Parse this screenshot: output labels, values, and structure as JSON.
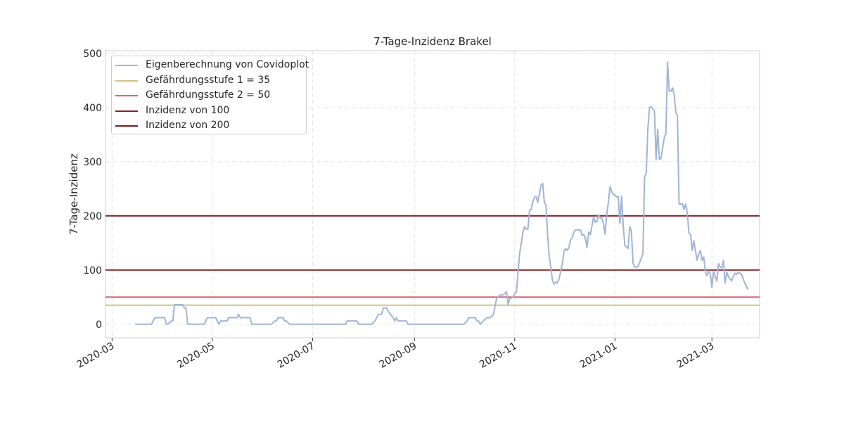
{
  "chart_data": {
    "type": "line",
    "title": "7-Tage-Inzidenz Brakel",
    "xlabel": "",
    "ylabel": "7-Tage-Inzidenz",
    "ylim": [
      -25,
      505
    ],
    "xlim": [
      "2020-02-26",
      "2021-03-30"
    ],
    "y_ticks": [
      0,
      100,
      200,
      300,
      400,
      500
    ],
    "x_ticks": [
      "2020-03",
      "2020-05",
      "2020-07",
      "2020-09",
      "2020-11",
      "2021-01",
      "2021-03"
    ],
    "grid": true,
    "legend_position": "upper-left",
    "series": [
      {
        "name": "Eigenberechnung von Covidoplot",
        "color": "#a0b4d6",
        "points": [
          [
            "2020-03-15",
            0
          ],
          [
            "2020-03-25",
            0
          ],
          [
            "2020-03-27",
            12
          ],
          [
            "2020-04-02",
            12
          ],
          [
            "2020-04-03",
            0
          ],
          [
            "2020-04-04",
            0
          ],
          [
            "2020-04-06",
            6
          ],
          [
            "2020-04-07",
            6
          ],
          [
            "2020-04-08",
            36
          ],
          [
            "2020-04-13",
            36
          ],
          [
            "2020-04-14",
            30
          ],
          [
            "2020-04-15",
            30
          ],
          [
            "2020-04-16",
            0
          ],
          [
            "2020-04-26",
            0
          ],
          [
            "2020-04-28",
            12
          ],
          [
            "2020-05-03",
            12
          ],
          [
            "2020-05-05",
            0
          ],
          [
            "2020-05-06",
            6
          ],
          [
            "2020-05-10",
            6
          ],
          [
            "2020-05-11",
            12
          ],
          [
            "2020-05-16",
            12
          ],
          [
            "2020-05-17",
            18
          ],
          [
            "2020-05-18",
            12
          ],
          [
            "2020-05-24",
            12
          ],
          [
            "2020-05-25",
            0
          ],
          [
            "2020-06-06",
            0
          ],
          [
            "2020-06-08",
            6
          ],
          [
            "2020-06-09",
            6
          ],
          [
            "2020-06-10",
            12
          ],
          [
            "2020-06-13",
            12
          ],
          [
            "2020-06-14",
            6
          ],
          [
            "2020-06-15",
            6
          ],
          [
            "2020-06-17",
            0
          ],
          [
            "2020-07-21",
            0
          ],
          [
            "2020-07-22",
            6
          ],
          [
            "2020-07-28",
            6
          ],
          [
            "2020-07-29",
            0
          ],
          [
            "2020-08-06",
            0
          ],
          [
            "2020-08-08",
            6
          ],
          [
            "2020-08-10",
            18
          ],
          [
            "2020-08-12",
            18
          ],
          [
            "2020-08-13",
            30
          ],
          [
            "2020-08-15",
            30
          ],
          [
            "2020-08-16",
            24
          ],
          [
            "2020-08-19",
            12
          ],
          [
            "2020-08-20",
            6
          ],
          [
            "2020-08-21",
            12
          ],
          [
            "2020-08-22",
            6
          ],
          [
            "2020-08-27",
            6
          ],
          [
            "2020-08-28",
            0
          ],
          [
            "2020-10-01",
            0
          ],
          [
            "2020-10-03",
            6
          ],
          [
            "2020-10-04",
            12
          ],
          [
            "2020-10-08",
            12
          ],
          [
            "2020-10-09",
            6
          ],
          [
            "2020-10-10",
            6
          ],
          [
            "2020-10-11",
            0
          ],
          [
            "2020-10-13",
            6
          ],
          [
            "2020-10-15",
            12
          ],
          [
            "2020-10-17",
            12
          ],
          [
            "2020-10-19",
            18
          ],
          [
            "2020-10-21",
            48
          ],
          [
            "2020-10-23",
            54
          ],
          [
            "2020-10-25",
            54
          ],
          [
            "2020-10-27",
            60
          ],
          [
            "2020-10-28",
            36
          ],
          [
            "2020-10-29",
            48
          ],
          [
            "2020-10-30",
            48
          ],
          [
            "2020-11-01",
            55
          ],
          [
            "2020-11-02",
            60
          ],
          [
            "2020-11-04",
            130
          ],
          [
            "2020-11-05",
            150
          ],
          [
            "2020-11-06",
            170
          ],
          [
            "2020-11-07",
            180
          ],
          [
            "2020-11-08",
            176
          ],
          [
            "2020-11-09",
            175
          ],
          [
            "2020-11-10",
            210
          ],
          [
            "2020-11-11",
            212
          ],
          [
            "2020-11-12",
            226
          ],
          [
            "2020-11-13",
            235
          ],
          [
            "2020-11-14",
            236
          ],
          [
            "2020-11-15",
            225
          ],
          [
            "2020-11-16",
            240
          ],
          [
            "2020-11-17",
            256
          ],
          [
            "2020-11-18",
            260
          ],
          [
            "2020-11-19",
            226
          ],
          [
            "2020-11-20",
            220
          ],
          [
            "2020-11-21",
            165
          ],
          [
            "2020-11-22",
            125
          ],
          [
            "2020-11-23",
            105
          ],
          [
            "2020-11-24",
            80
          ],
          [
            "2020-11-25",
            74
          ],
          [
            "2020-11-26",
            78
          ],
          [
            "2020-11-27",
            76
          ],
          [
            "2020-11-28",
            84
          ],
          [
            "2020-11-29",
            98
          ],
          [
            "2020-11-30",
            112
          ],
          [
            "2020-12-01",
            134
          ],
          [
            "2020-12-02",
            140
          ],
          [
            "2020-12-03",
            136
          ],
          [
            "2020-12-04",
            142
          ],
          [
            "2020-12-05",
            156
          ],
          [
            "2020-12-06",
            160
          ],
          [
            "2020-12-07",
            170
          ],
          [
            "2020-12-08",
            174
          ],
          [
            "2020-12-11",
            174
          ],
          [
            "2020-12-12",
            164
          ],
          [
            "2020-12-13",
            166
          ],
          [
            "2020-12-14",
            158
          ],
          [
            "2020-12-15",
            142
          ],
          [
            "2020-12-16",
            170
          ],
          [
            "2020-12-17",
            165
          ],
          [
            "2020-12-18",
            182
          ],
          [
            "2020-12-19",
            198
          ],
          [
            "2020-12-20",
            188
          ],
          [
            "2020-12-21",
            190
          ],
          [
            "2020-12-22",
            202
          ],
          [
            "2020-12-23",
            196
          ],
          [
            "2020-12-24",
            196
          ],
          [
            "2020-12-25",
            186
          ],
          [
            "2020-12-26",
            166
          ],
          [
            "2020-12-27",
            204
          ],
          [
            "2020-12-28",
            225
          ],
          [
            "2020-12-29",
            254
          ],
          [
            "2020-12-30",
            245
          ],
          [
            "2020-12-31",
            240
          ],
          [
            "2021-01-01",
            238
          ],
          [
            "2021-01-02",
            235
          ],
          [
            "2021-01-03",
            235
          ],
          [
            "2021-01-04",
            186
          ],
          [
            "2021-01-05",
            236
          ],
          [
            "2021-01-06",
            182
          ],
          [
            "2021-01-07",
            145
          ],
          [
            "2021-01-08",
            143
          ],
          [
            "2021-01-09",
            140
          ],
          [
            "2021-01-10",
            180
          ],
          [
            "2021-01-11",
            172
          ],
          [
            "2021-01-12",
            112
          ],
          [
            "2021-01-13",
            106
          ],
          [
            "2021-01-15",
            106
          ],
          [
            "2021-01-17",
            122
          ],
          [
            "2021-01-18",
            130
          ],
          [
            "2021-01-19",
            272
          ],
          [
            "2021-01-20",
            278
          ],
          [
            "2021-01-21",
            360
          ],
          [
            "2021-01-22",
            400
          ],
          [
            "2021-01-23",
            402
          ],
          [
            "2021-01-24",
            398
          ],
          [
            "2021-01-25",
            394
          ],
          [
            "2021-01-26",
            304
          ],
          [
            "2021-01-27",
            360
          ],
          [
            "2021-01-28",
            304
          ],
          [
            "2021-01-29",
            306
          ],
          [
            "2021-01-30",
            325
          ],
          [
            "2021-01-31",
            345
          ],
          [
            "2021-02-01",
            352
          ],
          [
            "2021-02-02",
            484
          ],
          [
            "2021-02-03",
            430
          ],
          [
            "2021-02-04",
            430
          ],
          [
            "2021-02-05",
            436
          ],
          [
            "2021-02-06",
            424
          ],
          [
            "2021-02-07",
            392
          ],
          [
            "2021-02-08",
            384
          ],
          [
            "2021-02-09",
            222
          ],
          [
            "2021-02-10",
            222
          ],
          [
            "2021-02-11",
            222
          ],
          [
            "2021-02-12",
            212
          ],
          [
            "2021-02-13",
            222
          ],
          [
            "2021-02-14",
            206
          ],
          [
            "2021-02-15",
            168
          ],
          [
            "2021-02-16",
            166
          ],
          [
            "2021-02-17",
            136
          ],
          [
            "2021-02-18",
            154
          ],
          [
            "2021-02-19",
            135
          ],
          [
            "2021-02-20",
            118
          ],
          [
            "2021-02-21",
            130
          ],
          [
            "2021-02-22",
            136
          ],
          [
            "2021-02-23",
            118
          ],
          [
            "2021-02-24",
            124
          ],
          [
            "2021-02-25",
            96
          ],
          [
            "2021-02-26",
            90
          ],
          [
            "2021-02-27",
            98
          ],
          [
            "2021-02-28",
            92
          ],
          [
            "2021-03-01",
            68
          ],
          [
            "2021-03-02",
            98
          ],
          [
            "2021-03-03",
            88
          ],
          [
            "2021-03-04",
            80
          ],
          [
            "2021-03-05",
            112
          ],
          [
            "2021-03-06",
            106
          ],
          [
            "2021-03-07",
            104
          ],
          [
            "2021-03-08",
            118
          ],
          [
            "2021-03-09",
            76
          ],
          [
            "2021-03-10",
            96
          ],
          [
            "2021-03-11",
            88
          ],
          [
            "2021-03-12",
            84
          ],
          [
            "2021-03-13",
            80
          ],
          [
            "2021-03-14",
            88
          ],
          [
            "2021-03-15",
            94
          ],
          [
            "2021-03-16",
            92
          ],
          [
            "2021-03-17",
            96
          ],
          [
            "2021-03-18",
            94
          ],
          [
            "2021-03-19",
            92
          ],
          [
            "2021-03-20",
            84
          ],
          [
            "2021-03-21",
            76
          ],
          [
            "2021-03-22",
            70
          ],
          [
            "2021-03-23",
            64
          ]
        ]
      }
    ],
    "hlines": [
      {
        "name": "Gefährdungsstufe 1 = 35",
        "y": 35,
        "color": "#d4c283"
      },
      {
        "name": "Gefährdungsstufe 2 = 50",
        "y": 50,
        "color": "#d9636b"
      },
      {
        "name": "Inzidenz von 100",
        "y": 100,
        "color": "#8b1f1f"
      },
      {
        "name": "Inzidenz von 200",
        "y": 200,
        "color": "#7f1c1c"
      }
    ]
  }
}
